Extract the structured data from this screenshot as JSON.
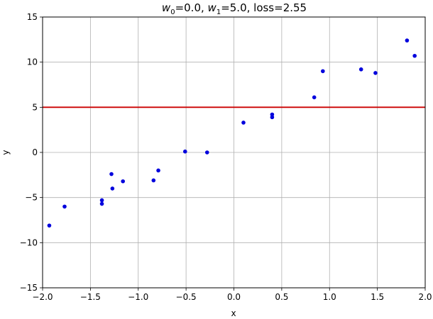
{
  "chart_data": {
    "type": "scatter",
    "title": {
      "w0_symbol": "w",
      "w0_sub": "0",
      "w0_value": "=0.0, ",
      "w1_symbol": "w",
      "w1_sub": "1",
      "w1_value": "=5.0, loss=2.55"
    },
    "xlabel": "x",
    "ylabel": "y",
    "xlim": [
      -2.0,
      2.0
    ],
    "ylim": [
      -15,
      15
    ],
    "x_ticks": [
      -2.0,
      -1.5,
      -1.0,
      -0.5,
      0.0,
      0.5,
      1.0,
      1.5,
      2.0
    ],
    "x_tick_labels": [
      "−2.0",
      "−1.5",
      "−1.0",
      "−0.5",
      "0.0",
      "0.5",
      "1.0",
      "1.5",
      "2.0"
    ],
    "y_ticks": [
      -15,
      -10,
      -5,
      0,
      5,
      10,
      15
    ],
    "y_tick_labels": [
      "−15",
      "−10",
      "−5",
      "0",
      "5",
      "10",
      "15"
    ],
    "grid": true,
    "points": {
      "color": "#0000dd",
      "x": [
        -1.93,
        -1.77,
        -1.38,
        -1.38,
        -1.28,
        -1.27,
        -1.16,
        -0.84,
        -0.79,
        -0.51,
        -0.28,
        0.1,
        0.4,
        0.4,
        0.84,
        0.93,
        1.33,
        1.48,
        1.81,
        1.89
      ],
      "y": [
        -8.1,
        -6.0,
        -5.3,
        -5.7,
        -2.4,
        -4.0,
        -3.2,
        -3.1,
        -2.0,
        0.1,
        0.0,
        3.3,
        3.9,
        4.2,
        6.1,
        9.0,
        9.2,
        8.8,
        12.4,
        10.7
      ]
    },
    "line": {
      "color": "#cc0000",
      "w0": 0.0,
      "w1": 5.0
    }
  }
}
